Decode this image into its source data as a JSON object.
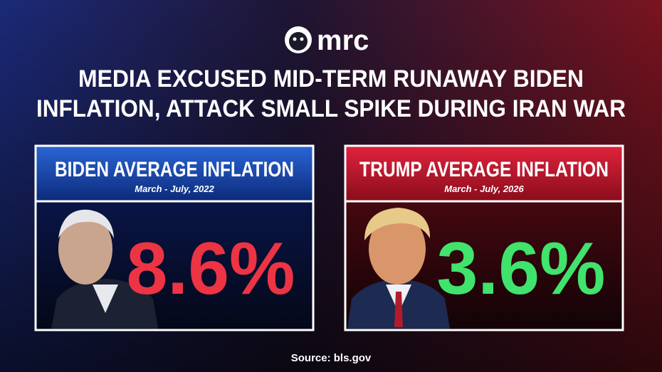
{
  "logo": "mrc",
  "title": [
    "MEDIA EXCUSED MID-TERM RUNAWAY BIDEN",
    "INFLATION, ATTACK SMALL SPIKE DURING IRAN WAR"
  ],
  "panels": [
    {
      "heading": "BIDEN AVERAGE INFLATION",
      "period": "March - July, 2022",
      "value": "8.6%"
    },
    {
      "heading": "TRUMP AVERAGE INFLATION",
      "period": "March - July, 2026",
      "value": "3.6%"
    }
  ],
  "source": "Source: bls.gov"
}
